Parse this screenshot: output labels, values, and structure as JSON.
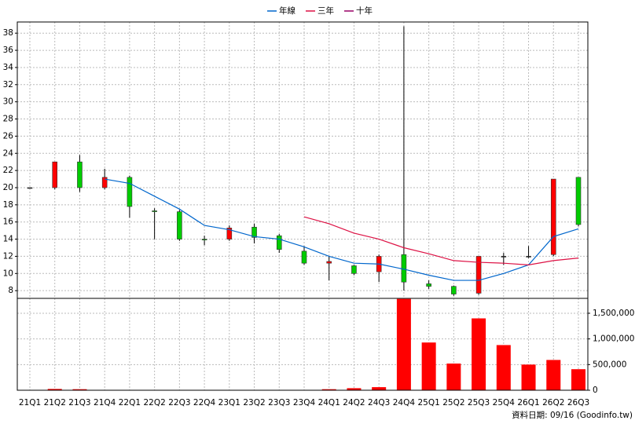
{
  "chart_data": [
    {
      "type": "candlestick",
      "categories": [
        "21Q1",
        "21Q2",
        "21Q3",
        "21Q4",
        "22Q1",
        "22Q2",
        "22Q3",
        "22Q4",
        "23Q1",
        "23Q2",
        "23Q3",
        "23Q4",
        "24Q1",
        "24Q2",
        "24Q3",
        "24Q4",
        "25Q1",
        "25Q2",
        "25Q3",
        "25Q4",
        "26Q1",
        "26Q2",
        "26Q3"
      ],
      "open": [
        20,
        20,
        23,
        20,
        21.2,
        17.3,
        17.2,
        14,
        14,
        15.4,
        14.4,
        12.6,
        11.2,
        10.9,
        10.2,
        12.2,
        8.8,
        8.5,
        7.7,
        12,
        12,
        12.2,
        21.2
      ],
      "high": [
        20,
        23,
        23.8,
        22.2,
        21.4,
        17.6,
        17.4,
        14.4,
        15.6,
        15.8,
        14.6,
        13.2,
        12,
        11,
        12.2,
        38.8,
        9.2,
        8.6,
        12,
        12.4,
        13.2,
        21,
        21.2
      ],
      "low": [
        20,
        19.8,
        19.5,
        19.8,
        16.5,
        14,
        13.8,
        13.3,
        13.8,
        13.5,
        12.4,
        11,
        9.2,
        9.8,
        9,
        8,
        8.2,
        7.4,
        7.5,
        11,
        11.8,
        12,
        15.5
      ],
      "close": [
        20,
        23,
        20,
        21.2,
        17.8,
        17.2,
        14,
        13.9,
        15.3,
        14.2,
        12.8,
        11.2,
        11.4,
        10,
        12,
        9,
        8.5,
        7.6,
        12,
        12,
        12,
        21,
        15.7
      ],
      "up_color": "#ff0000",
      "down_color": "#00cc00",
      "series": [
        {
          "name": "年線",
          "color": "#0066cc",
          "values": [
            null,
            null,
            null,
            21,
            20.5,
            19,
            17.5,
            15.6,
            15.1,
            14.3,
            14,
            13.1,
            12,
            11.2,
            11.1,
            10.5,
            9.8,
            9.2,
            9.2,
            10,
            11,
            14.3,
            15.2
          ]
        },
        {
          "name": "三年",
          "color": "#dd1144",
          "values": [
            null,
            null,
            null,
            null,
            null,
            null,
            null,
            null,
            null,
            null,
            null,
            16.6,
            15.8,
            14.7,
            14,
            13,
            12.3,
            11.5,
            11.3,
            11.2,
            11,
            11.5,
            11.8
          ]
        },
        {
          "name": "十年",
          "color": "#990066",
          "values": [
            null,
            null,
            null,
            null,
            null,
            null,
            null,
            null,
            null,
            null,
            null,
            null,
            null,
            null,
            null,
            null,
            null,
            null,
            null,
            null,
            null,
            null,
            null
          ]
        }
      ],
      "ylim": [
        7.1,
        39.3
      ],
      "yticks": [
        8,
        10,
        12,
        14,
        16,
        18,
        20,
        22,
        24,
        26,
        28,
        30,
        32,
        34,
        36,
        38
      ],
      "grid": true
    },
    {
      "type": "bar",
      "color": "#ff0000",
      "values": [
        0,
        25000,
        20000,
        5000,
        5000,
        5000,
        5000,
        3000,
        5000,
        5000,
        5000,
        5000,
        20000,
        40000,
        60000,
        1780000,
        930000,
        520000,
        1400000,
        880000,
        500000,
        590000,
        410000
      ],
      "ylim": [
        0,
        1790000
      ],
      "yticks": [
        0,
        {
          "value": 500000,
          "label": "500,000"
        },
        {
          "value": 1000000,
          "label": "1,000,000"
        },
        {
          "value": 1500000,
          "label": "1,500,000"
        }
      ],
      "grid": true
    }
  ],
  "footer": "資料日期: 09/16  (Goodinfo.tw)"
}
